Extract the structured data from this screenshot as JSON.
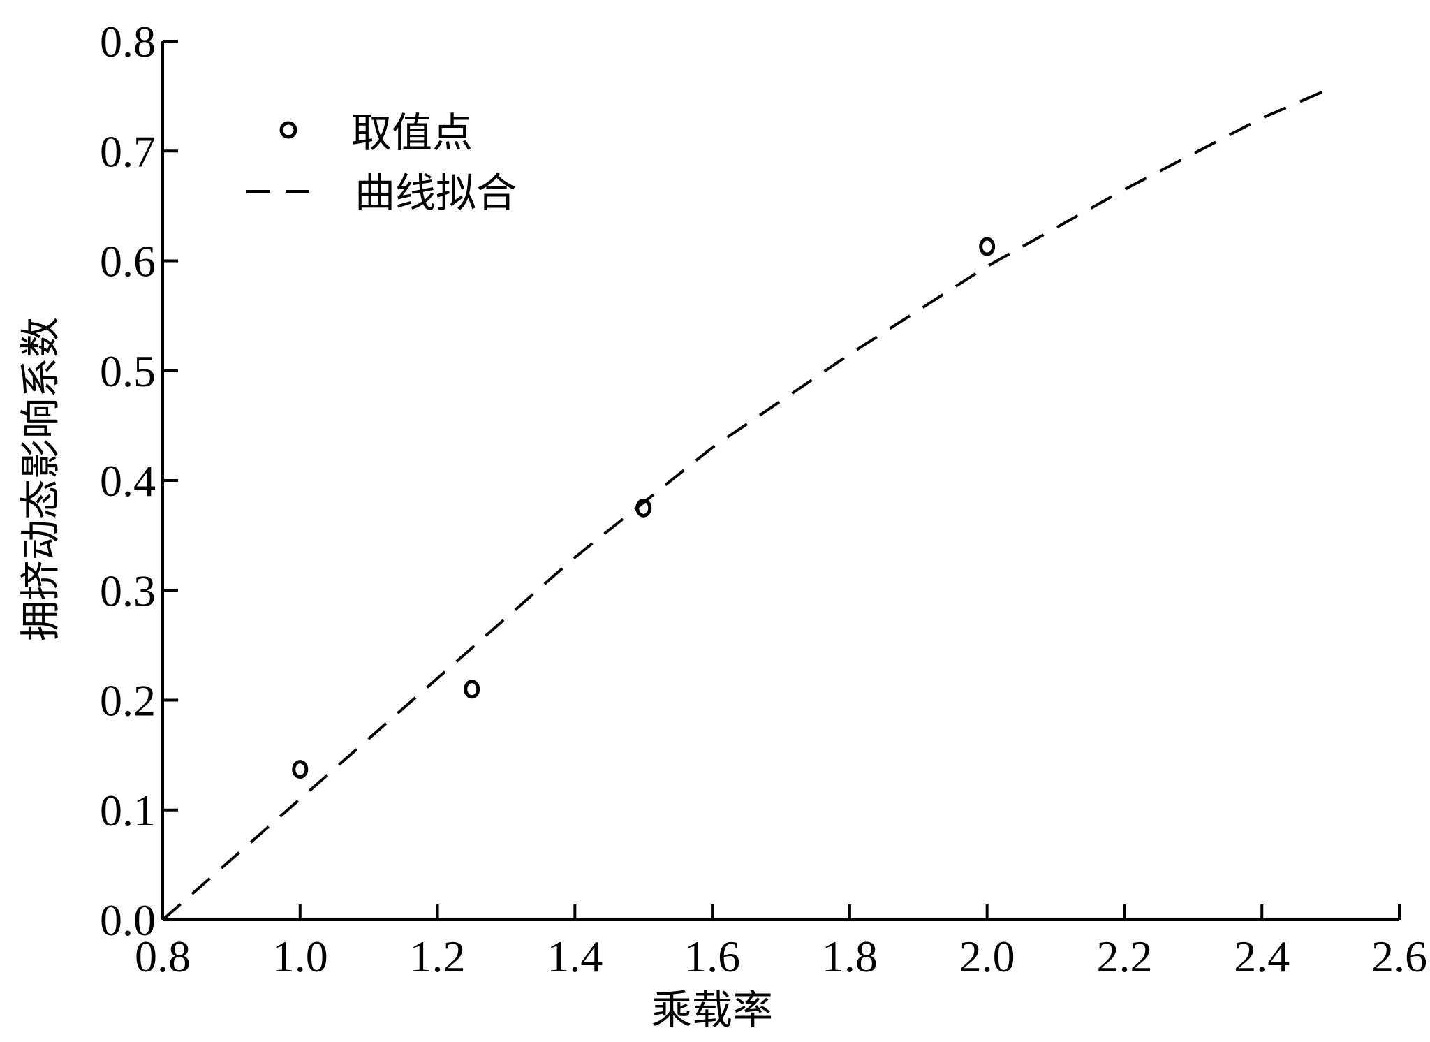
{
  "chart_data": {
    "type": "scatter",
    "title": "",
    "xlabel": "乘载率",
    "ylabel": "拥挤动态影响系数",
    "xlim": [
      0.8,
      2.6
    ],
    "ylim": [
      0.0,
      0.8
    ],
    "xticks": [
      "0.8",
      "1.0",
      "1.2",
      "1.4",
      "1.6",
      "1.8",
      "2.0",
      "2.2",
      "2.4",
      "2.6"
    ],
    "yticks": [
      "0.0",
      "0.1",
      "0.2",
      "0.3",
      "0.4",
      "0.5",
      "0.6",
      "0.7",
      "0.8"
    ],
    "grid": false,
    "legend_position": "top-left",
    "series": [
      {
        "name": "取值点",
        "style": "open-circle-markers",
        "color": "#000000",
        "x": [
          1.0,
          1.25,
          1.5,
          2.0
        ],
        "y": [
          0.137,
          0.21,
          0.375,
          0.613
        ]
      },
      {
        "name": "曲线拟合",
        "style": "dashed-line",
        "color": "#000000",
        "x": [
          0.8,
          1.0,
          1.2,
          1.4,
          1.6,
          1.8,
          2.0,
          2.2,
          2.4,
          2.5
        ],
        "y": [
          0.0,
          0.11,
          0.22,
          0.33,
          0.43,
          0.515,
          0.595,
          0.665,
          0.73,
          0.757
        ]
      }
    ]
  }
}
